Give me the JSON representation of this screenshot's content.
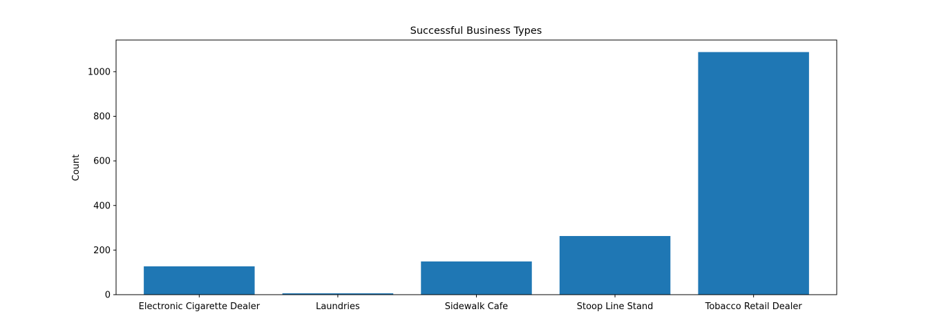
{
  "chart_data": {
    "type": "bar",
    "title": "Successful Business Types",
    "xlabel": "",
    "ylabel": "Count",
    "categories": [
      "Electronic Cigarette Dealer",
      "Laundries",
      "Sidewalk Cafe",
      "Stoop Line Stand",
      "Tobacco Retail Dealer"
    ],
    "values": [
      127,
      6,
      149,
      263,
      1088
    ],
    "ylim": [
      0,
      1142
    ],
    "yticks": [
      0,
      200,
      400,
      600,
      800,
      1000
    ],
    "grid": false,
    "legend": "none",
    "bar_color": "#1f77b4"
  }
}
